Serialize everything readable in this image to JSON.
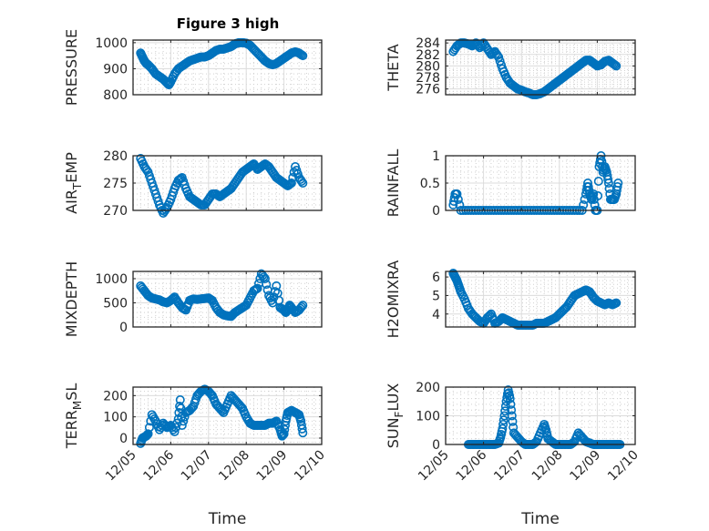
{
  "figure": {
    "title": "Figure 3 high",
    "marker_color": "#0072BD"
  },
  "chart_data": [
    {
      "type": "scatter",
      "title": "Figure 3 high",
      "ylabel": "PRESSURE",
      "xlabel": "",
      "ylim": [
        800,
        1010
      ],
      "yticks": [
        800,
        900,
        1000
      ],
      "xlim": [
        0,
        5
      ],
      "xticks": [
        "12/05",
        "12/06",
        "12/07",
        "12/08",
        "12/09",
        "12/10"
      ],
      "grid": true,
      "x": [
        0.2,
        0.25,
        0.3,
        0.35,
        0.4,
        0.5,
        0.6,
        0.7,
        0.8,
        0.9,
        0.95,
        1.0,
        1.1,
        1.2,
        1.3,
        1.4,
        1.5,
        1.6,
        1.7,
        1.8,
        1.9,
        2.0,
        2.1,
        2.2,
        2.3,
        2.4,
        2.5,
        2.6,
        2.7,
        2.8,
        2.9,
        3.0,
        3.1,
        3.2,
        3.3,
        3.4,
        3.5,
        3.6,
        3.7,
        3.8,
        3.9,
        4.0,
        4.1,
        4.2,
        4.3,
        4.4,
        4.5
      ],
      "y": [
        960,
        945,
        930,
        920,
        915,
        900,
        880,
        870,
        860,
        845,
        838,
        850,
        880,
        900,
        910,
        920,
        930,
        935,
        940,
        945,
        945,
        950,
        960,
        970,
        975,
        975,
        980,
        985,
        995,
        1000,
        1000,
        998,
        990,
        975,
        960,
        945,
        930,
        920,
        915,
        920,
        930,
        940,
        950,
        960,
        965,
        960,
        950
      ]
    },
    {
      "type": "scatter",
      "ylabel": "THETA",
      "xlabel": "",
      "ylim": [
        275,
        284.5
      ],
      "yticks": [
        276,
        278,
        280,
        282,
        284
      ],
      "xlim": [
        0,
        5
      ],
      "xticks": [
        "12/05",
        "12/06",
        "12/07",
        "12/08",
        "12/09",
        "12/10"
      ],
      "grid": true,
      "x": [
        0.2,
        0.3,
        0.4,
        0.5,
        0.6,
        0.7,
        0.8,
        0.9,
        1.0,
        1.1,
        1.2,
        1.3,
        1.4,
        1.5,
        1.6,
        1.7,
        1.8,
        1.9,
        2.0,
        2.1,
        2.2,
        2.3,
        2.4,
        2.5,
        2.6,
        2.7,
        2.8,
        2.9,
        3.0,
        3.1,
        3.2,
        3.3,
        3.4,
        3.5,
        3.6,
        3.7,
        3.8,
        3.9,
        4.0,
        4.1,
        4.2,
        4.3,
        4.4,
        4.5
      ],
      "y": [
        282.5,
        283.5,
        284,
        284,
        283.8,
        283.5,
        284,
        283.2,
        284,
        283,
        282,
        282.5,
        281.5,
        279.5,
        278,
        277,
        276.5,
        276,
        275.8,
        275.5,
        275.3,
        275,
        275,
        275.2,
        275.5,
        276,
        276.5,
        277,
        277.5,
        278,
        278.5,
        279,
        279.5,
        280,
        280.5,
        281,
        281,
        280.5,
        280,
        280.2,
        280.8,
        281,
        280.5,
        280
      ]
    },
    {
      "type": "scatter",
      "ylabel": "AIR_TEMP",
      "xlabel": "",
      "ylim": [
        270,
        280
      ],
      "yticks": [
        270,
        275,
        280
      ],
      "xlim": [
        0,
        5
      ],
      "xticks": [
        "12/05",
        "12/06",
        "12/07",
        "12/08",
        "12/09",
        "12/10"
      ],
      "grid": true,
      "x": [
        0.2,
        0.3,
        0.4,
        0.5,
        0.6,
        0.7,
        0.8,
        0.9,
        1.0,
        1.1,
        1.2,
        1.3,
        1.4,
        1.5,
        1.6,
        1.7,
        1.8,
        1.9,
        2.0,
        2.1,
        2.2,
        2.3,
        2.4,
        2.5,
        2.6,
        2.7,
        2.8,
        2.9,
        3.0,
        3.1,
        3.2,
        3.3,
        3.4,
        3.5,
        3.6,
        3.7,
        3.8,
        3.9,
        4.0,
        4.1,
        4.2,
        4.3,
        4.4,
        4.5
      ],
      "y": [
        279.5,
        278,
        277,
        275,
        273,
        271,
        269.5,
        270.5,
        272,
        274,
        275.5,
        276,
        274,
        272.5,
        272,
        271.5,
        271,
        271,
        272,
        273,
        273,
        272.5,
        273,
        273.5,
        274,
        275,
        276,
        277,
        277.5,
        278,
        278.5,
        277.5,
        278,
        278.5,
        278,
        277,
        276,
        275.5,
        275,
        274.5,
        275,
        278,
        276,
        275
      ]
    },
    {
      "type": "scatter",
      "ylabel": "RAINFALL",
      "xlabel": "",
      "ylim": [
        0,
        1
      ],
      "yticks": [
        0,
        0.5,
        1
      ],
      "xlim": [
        0,
        5
      ],
      "xticks": [
        "12/05",
        "12/06",
        "12/07",
        "12/08",
        "12/09",
        "12/10"
      ],
      "grid": true,
      "x": [
        0.2,
        0.25,
        0.3,
        0.4,
        0.6,
        0.8,
        1.0,
        1.2,
        1.4,
        1.6,
        1.8,
        2.0,
        2.2,
        2.4,
        2.6,
        2.8,
        3.0,
        3.2,
        3.4,
        3.6,
        3.7,
        3.75,
        3.8,
        3.85,
        3.9,
        3.95,
        4.0,
        4.05,
        4.1,
        4.15,
        4.2,
        4.25,
        4.3,
        4.35,
        4.4,
        4.45,
        4.5,
        4.55
      ],
      "y": [
        0.1,
        0.3,
        0.3,
        0,
        0,
        0,
        0,
        0,
        0,
        0,
        0,
        0,
        0,
        0,
        0,
        0,
        0,
        0,
        0,
        0,
        0.3,
        0.5,
        0.3,
        0.2,
        0.3,
        0,
        0,
        0.8,
        1.0,
        0.7,
        0.8,
        0.7,
        0.5,
        0.2,
        0.2,
        0.2,
        0.3,
        0.5
      ]
    },
    {
      "type": "scatter",
      "ylabel": "MIXDEPTH",
      "xlabel": "",
      "ylim": [
        0,
        1150
      ],
      "yticks": [
        0,
        500,
        1000
      ],
      "xlim": [
        0,
        5
      ],
      "xticks": [
        "12/05",
        "12/06",
        "12/07",
        "12/08",
        "12/09",
        "12/10"
      ],
      "grid": true,
      "x": [
        0.2,
        0.3,
        0.4,
        0.5,
        0.6,
        0.7,
        0.8,
        0.9,
        1.0,
        1.1,
        1.2,
        1.3,
        1.4,
        1.5,
        1.6,
        1.7,
        1.8,
        1.9,
        2.0,
        2.1,
        2.2,
        2.3,
        2.4,
        2.5,
        2.6,
        2.7,
        2.8,
        2.9,
        3.0,
        3.1,
        3.2,
        3.3,
        3.4,
        3.5,
        3.6,
        3.7,
        3.8,
        3.9,
        4.0,
        4.05,
        4.1,
        4.15,
        4.2,
        4.3,
        4.4,
        4.5
      ],
      "y": [
        850,
        750,
        650,
        600,
        580,
        560,
        520,
        500,
        550,
        620,
        500,
        400,
        350,
        550,
        580,
        570,
        580,
        590,
        600,
        550,
        400,
        300,
        250,
        230,
        220,
        300,
        350,
        400,
        450,
        600,
        750,
        800,
        1100,
        1000,
        650,
        500,
        850,
        400,
        350,
        300,
        350,
        450,
        400,
        300,
        350,
        450
      ]
    },
    {
      "type": "scatter",
      "ylabel": "H2OMIXRA",
      "xlabel": "",
      "ylim": [
        3.3,
        6.3
      ],
      "yticks": [
        4,
        5,
        6
      ],
      "xlim": [
        0,
        5
      ],
      "xticks": [
        "12/05",
        "12/06",
        "12/07",
        "12/08",
        "12/09",
        "12/10"
      ],
      "grid": true,
      "x": [
        0.2,
        0.25,
        0.3,
        0.35,
        0.4,
        0.5,
        0.6,
        0.7,
        0.8,
        0.9,
        1.0,
        1.1,
        1.2,
        1.3,
        1.4,
        1.5,
        1.6,
        1.7,
        1.8,
        1.9,
        2.0,
        2.1,
        2.2,
        2.3,
        2.4,
        2.5,
        2.6,
        2.7,
        2.8,
        2.9,
        3.0,
        3.1,
        3.2,
        3.3,
        3.4,
        3.5,
        3.6,
        3.7,
        3.8,
        3.9,
        4.0,
        4.1,
        4.2,
        4.3,
        4.4,
        4.5
      ],
      "y": [
        6.2,
        6.0,
        5.8,
        5.5,
        5.2,
        4.8,
        4.3,
        4.0,
        3.8,
        3.6,
        3.5,
        3.8,
        4.0,
        3.5,
        3.6,
        3.8,
        3.7,
        3.6,
        3.5,
        3.4,
        3.4,
        3.4,
        3.4,
        3.4,
        3.5,
        3.5,
        3.5,
        3.6,
        3.7,
        3.8,
        4.0,
        4.2,
        4.4,
        4.7,
        5.0,
        5.1,
        5.2,
        5.3,
        5.2,
        4.9,
        4.7,
        4.6,
        4.5,
        4.6,
        4.5,
        4.6
      ]
    },
    {
      "type": "scatter",
      "ylabel": "TERR_MSL",
      "xlabel": "Time",
      "ylim": [
        -30,
        240
      ],
      "yticks": [
        0,
        100,
        200
      ],
      "xlim": [
        0,
        5
      ],
      "xticks": [
        "12/05",
        "12/06",
        "12/07",
        "12/08",
        "12/09",
        "12/10"
      ],
      "grid": true,
      "x": [
        0.2,
        0.25,
        0.3,
        0.35,
        0.4,
        0.5,
        0.6,
        0.7,
        0.8,
        0.9,
        1.0,
        1.1,
        1.2,
        1.25,
        1.3,
        1.4,
        1.5,
        1.6,
        1.7,
        1.8,
        1.9,
        2.0,
        2.1,
        2.2,
        2.3,
        2.4,
        2.5,
        2.6,
        2.7,
        2.8,
        2.9,
        3.0,
        3.1,
        3.2,
        3.3,
        3.4,
        3.5,
        3.6,
        3.7,
        3.8,
        3.9,
        3.95,
        4.0,
        4.05,
        4.1,
        4.2,
        4.3,
        4.4,
        4.45,
        4.5
      ],
      "y": [
        -25,
        0,
        5,
        10,
        20,
        110,
        80,
        40,
        70,
        50,
        60,
        30,
        90,
        180,
        60,
        120,
        130,
        150,
        200,
        220,
        230,
        220,
        200,
        160,
        140,
        120,
        160,
        200,
        180,
        160,
        140,
        100,
        70,
        60,
        60,
        60,
        60,
        70,
        70,
        80,
        40,
        10,
        20,
        80,
        120,
        130,
        120,
        110,
        80,
        25
      ]
    },
    {
      "type": "scatter",
      "ylabel": "SUN_FLUX",
      "xlabel": "Time",
      "ylim": [
        0,
        200
      ],
      "yticks": [
        0,
        100,
        200
      ],
      "xlim": [
        0,
        5
      ],
      "xticks": [
        "12/05",
        "12/06",
        "12/07",
        "12/08",
        "12/09",
        "12/10"
      ],
      "grid": true,
      "x": [
        0.6,
        0.7,
        0.8,
        0.9,
        1.0,
        1.1,
        1.2,
        1.3,
        1.4,
        1.45,
        1.5,
        1.55,
        1.6,
        1.65,
        1.7,
        1.75,
        1.8,
        1.9,
        2.0,
        2.1,
        2.2,
        2.3,
        2.4,
        2.5,
        2.6,
        2.65,
        2.7,
        2.8,
        2.9,
        3.0,
        3.1,
        3.2,
        3.3,
        3.4,
        3.5,
        3.6,
        3.7,
        3.8,
        3.9,
        4.0,
        4.1,
        4.2,
        4.3,
        4.4,
        4.5,
        4.6
      ],
      "y": [
        0,
        0,
        0,
        0,
        0,
        0,
        0,
        0,
        5,
        25,
        55,
        100,
        150,
        190,
        160,
        100,
        40,
        25,
        10,
        0,
        0,
        0,
        10,
        40,
        70,
        50,
        20,
        10,
        0,
        0,
        0,
        0,
        0,
        10,
        40,
        25,
        10,
        5,
        0,
        0,
        0,
        0,
        0,
        0,
        0,
        0
      ]
    }
  ]
}
